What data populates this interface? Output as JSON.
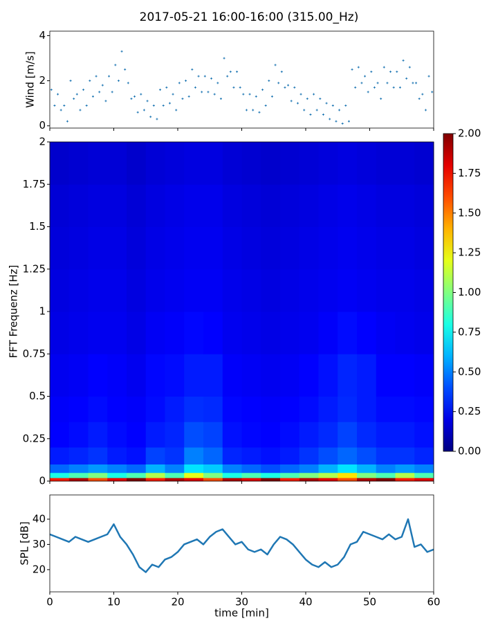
{
  "title": "2017-05-21 16:00-16:00 (315.00_Hz)",
  "chart_data": [
    {
      "type": "scatter",
      "ylabel": "Wind [m/s]",
      "color": "#1f77b4",
      "xlim": [
        0,
        60
      ],
      "ylim": [
        -0.1,
        4.2
      ],
      "yticks": [
        0,
        2,
        4
      ],
      "x": [
        0.25,
        0.75,
        1.25,
        1.75,
        2.25,
        2.75,
        3.25,
        3.75,
        4.25,
        4.75,
        5.25,
        5.75,
        6.25,
        6.75,
        7.25,
        7.75,
        8.25,
        8.75,
        9.25,
        9.75,
        10.25,
        10.75,
        11.25,
        11.75,
        12.25,
        12.75,
        13.25,
        13.75,
        14.25,
        14.75,
        15.25,
        15.75,
        16.25,
        16.75,
        17.25,
        17.75,
        18.25,
        18.75,
        19.25,
        19.75,
        20.25,
        20.75,
        21.25,
        21.75,
        22.25,
        22.75,
        23.25,
        23.75,
        24.25,
        24.75,
        25.25,
        25.75,
        26.25,
        26.75,
        27.25,
        27.75,
        28.25,
        28.75,
        29.25,
        29.75,
        30.25,
        30.75,
        31.25,
        31.75,
        32.25,
        32.75,
        33.25,
        33.75,
        34.25,
        34.75,
        35.25,
        35.75,
        36.25,
        36.75,
        37.25,
        37.75,
        38.25,
        38.75,
        39.25,
        39.75,
        40.25,
        40.75,
        41.25,
        41.75,
        42.25,
        42.75,
        43.25,
        43.75,
        44.25,
        44.75,
        45.25,
        45.75,
        46.25,
        46.75,
        47.25,
        47.75,
        48.25,
        48.75,
        49.25,
        49.75,
        50.25,
        50.75,
        51.25,
        51.75,
        52.25,
        52.75,
        53.25,
        53.75,
        54.25,
        54.75,
        55.25,
        55.75,
        56.25,
        56.75,
        57.25,
        57.75,
        58.25,
        58.75,
        59.25,
        59.75
      ],
      "values": [
        1.6,
        0.9,
        1.4,
        0.7,
        0.9,
        0.2,
        2.0,
        1.2,
        1.4,
        0.7,
        1.6,
        0.9,
        2.0,
        1.3,
        2.2,
        1.5,
        1.8,
        1.1,
        2.2,
        1.5,
        2.7,
        2.0,
        3.3,
        2.5,
        1.9,
        1.2,
        1.3,
        0.6,
        1.4,
        0.7,
        1.1,
        0.4,
        0.9,
        0.3,
        1.6,
        0.9,
        1.7,
        1.0,
        1.4,
        0.7,
        1.9,
        1.2,
        2.0,
        1.3,
        2.5,
        1.7,
        2.2,
        1.5,
        2.2,
        1.5,
        2.1,
        1.4,
        1.9,
        1.2,
        3.0,
        2.2,
        2.4,
        1.7,
        2.4,
        1.7,
        1.4,
        0.7,
        1.4,
        0.7,
        1.3,
        0.6,
        1.6,
        0.9,
        2.0,
        1.3,
        2.7,
        1.9,
        2.4,
        1.7,
        1.8,
        1.1,
        1.7,
        1.0,
        1.4,
        0.7,
        1.2,
        0.5,
        1.4,
        0.7,
        1.2,
        0.5,
        1.0,
        0.3,
        0.9,
        0.2,
        0.7,
        0.1,
        0.9,
        0.2,
        2.5,
        1.7,
        2.6,
        1.9,
        2.2,
        1.5,
        2.4,
        1.7,
        1.9,
        1.2,
        2.6,
        1.9,
        2.4,
        1.7,
        2.4,
        1.7,
        2.9,
        2.1,
        2.6,
        1.9,
        1.9,
        1.2,
        1.4,
        0.7,
        2.2,
        1.5
      ]
    },
    {
      "type": "heatmap",
      "ylabel": "FFT Frequenz [Hz]",
      "xlim": [
        0,
        60
      ],
      "ylim": [
        0,
        2
      ],
      "yticks": [
        0,
        0.25,
        0.5,
        0.75,
        1,
        1.25,
        1.5,
        1.75,
        2
      ],
      "x_bins": [
        0,
        3,
        6,
        9,
        12,
        15,
        18,
        21,
        24,
        27,
        30,
        33,
        36,
        39,
        42,
        45,
        48,
        51,
        54,
        57,
        60
      ],
      "y_bins": [
        0,
        0.02,
        0.05,
        0.1,
        0.2,
        0.35,
        0.5,
        0.75,
        1,
        1.25,
        1.5,
        1.75,
        2
      ],
      "clim": [
        0,
        2
      ],
      "cticks": [
        {
          "value": 0,
          "label": "0.00"
        },
        {
          "value": 0.25,
          "label": "0.25"
        },
        {
          "value": 0.5,
          "label": "0.50"
        },
        {
          "value": 0.75,
          "label": "0.75"
        },
        {
          "value": 1,
          "label": "1.00"
        },
        {
          "value": 1.25,
          "label": "1.25"
        },
        {
          "value": 1.5,
          "label": "1.50"
        },
        {
          "value": 1.75,
          "label": "1.75"
        },
        {
          "value": 2,
          "label": "2.00"
        }
      ],
      "values": [
        [
          1.7,
          1.9,
          1.6,
          1.8,
          2,
          1.7,
          1.9,
          1.8,
          1.6,
          1.9,
          1.8,
          2,
          1.7,
          1.9,
          1.8,
          1.6,
          1.9,
          2,
          1.7,
          1.8
        ],
        [
          0.8,
          0.9,
          1.0,
          0.8,
          0.9,
          1.1,
          0.9,
          1.2,
          1.0,
          0.8,
          0.9,
          0.8,
          0.9,
          1.0,
          1.1,
          1.3,
          1.0,
          0.9,
          1.1,
          0.9
        ],
        [
          0.45,
          0.5,
          0.55,
          0.5,
          0.45,
          0.6,
          0.5,
          0.7,
          0.65,
          0.5,
          0.45,
          0.4,
          0.45,
          0.5,
          0.6,
          0.7,
          0.6,
          0.5,
          0.55,
          0.5
        ],
        [
          0.3,
          0.32,
          0.35,
          0.3,
          0.28,
          0.38,
          0.35,
          0.5,
          0.45,
          0.32,
          0.3,
          0.28,
          0.3,
          0.35,
          0.4,
          0.45,
          0.4,
          0.35,
          0.35,
          0.32
        ],
        [
          0.25,
          0.27,
          0.3,
          0.27,
          0.25,
          0.3,
          0.32,
          0.4,
          0.38,
          0.28,
          0.26,
          0.25,
          0.27,
          0.3,
          0.33,
          0.38,
          0.33,
          0.3,
          0.3,
          0.28
        ],
        [
          0.24,
          0.25,
          0.27,
          0.25,
          0.24,
          0.27,
          0.3,
          0.34,
          0.33,
          0.26,
          0.25,
          0.24,
          0.25,
          0.27,
          0.3,
          0.33,
          0.3,
          0.27,
          0.27,
          0.26
        ],
        [
          0.22,
          0.23,
          0.25,
          0.24,
          0.22,
          0.26,
          0.27,
          0.3,
          0.3,
          0.24,
          0.23,
          0.22,
          0.23,
          0.25,
          0.28,
          0.32,
          0.3,
          0.25,
          0.25,
          0.24
        ],
        [
          0.2,
          0.21,
          0.22,
          0.22,
          0.2,
          0.23,
          0.24,
          0.26,
          0.25,
          0.22,
          0.21,
          0.2,
          0.21,
          0.22,
          0.24,
          0.27,
          0.25,
          0.23,
          0.22,
          0.21
        ],
        [
          0.19,
          0.2,
          0.21,
          0.21,
          0.19,
          0.21,
          0.22,
          0.23,
          0.23,
          0.21,
          0.2,
          0.19,
          0.2,
          0.21,
          0.22,
          0.23,
          0.22,
          0.21,
          0.21,
          0.2
        ],
        [
          0.18,
          0.19,
          0.2,
          0.2,
          0.18,
          0.2,
          0.21,
          0.22,
          0.22,
          0.2,
          0.19,
          0.18,
          0.19,
          0.2,
          0.21,
          0.22,
          0.21,
          0.2,
          0.2,
          0.19
        ],
        [
          0.17,
          0.18,
          0.19,
          0.19,
          0.17,
          0.19,
          0.2,
          0.21,
          0.21,
          0.19,
          0.18,
          0.17,
          0.18,
          0.19,
          0.2,
          0.21,
          0.2,
          0.19,
          0.19,
          0.18
        ],
        [
          0.15,
          0.16,
          0.17,
          0.17,
          0.15,
          0.17,
          0.18,
          0.19,
          0.19,
          0.17,
          0.16,
          0.15,
          0.16,
          0.17,
          0.18,
          0.19,
          0.18,
          0.17,
          0.17,
          0.16
        ]
      ]
    },
    {
      "type": "line",
      "ylabel": "SPL [dB]",
      "xlabel": "time [min]",
      "color": "#1f77b4",
      "xlim": [
        0,
        60
      ],
      "ylim": [
        11.2,
        49.6
      ],
      "xticks": [
        0,
        10,
        20,
        30,
        40,
        50,
        60
      ],
      "yticks": [
        20,
        30,
        40
      ],
      "x": [
        0,
        1,
        2,
        3,
        4,
        5,
        6,
        7,
        8,
        9,
        10,
        11,
        12,
        13,
        14,
        15,
        16,
        17,
        18,
        19,
        20,
        21,
        22,
        23,
        24,
        25,
        26,
        27,
        28,
        29,
        30,
        31,
        32,
        33,
        34,
        35,
        36,
        37,
        38,
        39,
        40,
        41,
        42,
        43,
        44,
        45,
        46,
        47,
        48,
        49,
        50,
        51,
        52,
        53,
        54,
        55,
        56,
        57,
        58,
        59,
        60
      ],
      "values": [
        34,
        33,
        32,
        31,
        33,
        32,
        31,
        32,
        33,
        34,
        38,
        33,
        30,
        26,
        21,
        19,
        22,
        21,
        24,
        25,
        27,
        30,
        31,
        32,
        30,
        33,
        35,
        36,
        33,
        30,
        31,
        28,
        27,
        28,
        26,
        30,
        33,
        32,
        30,
        27,
        24,
        22,
        21,
        23,
        21,
        22,
        25,
        30,
        31,
        35,
        34,
        33,
        32,
        34,
        32,
        33,
        40,
        29,
        30,
        27,
        28
      ]
    }
  ]
}
